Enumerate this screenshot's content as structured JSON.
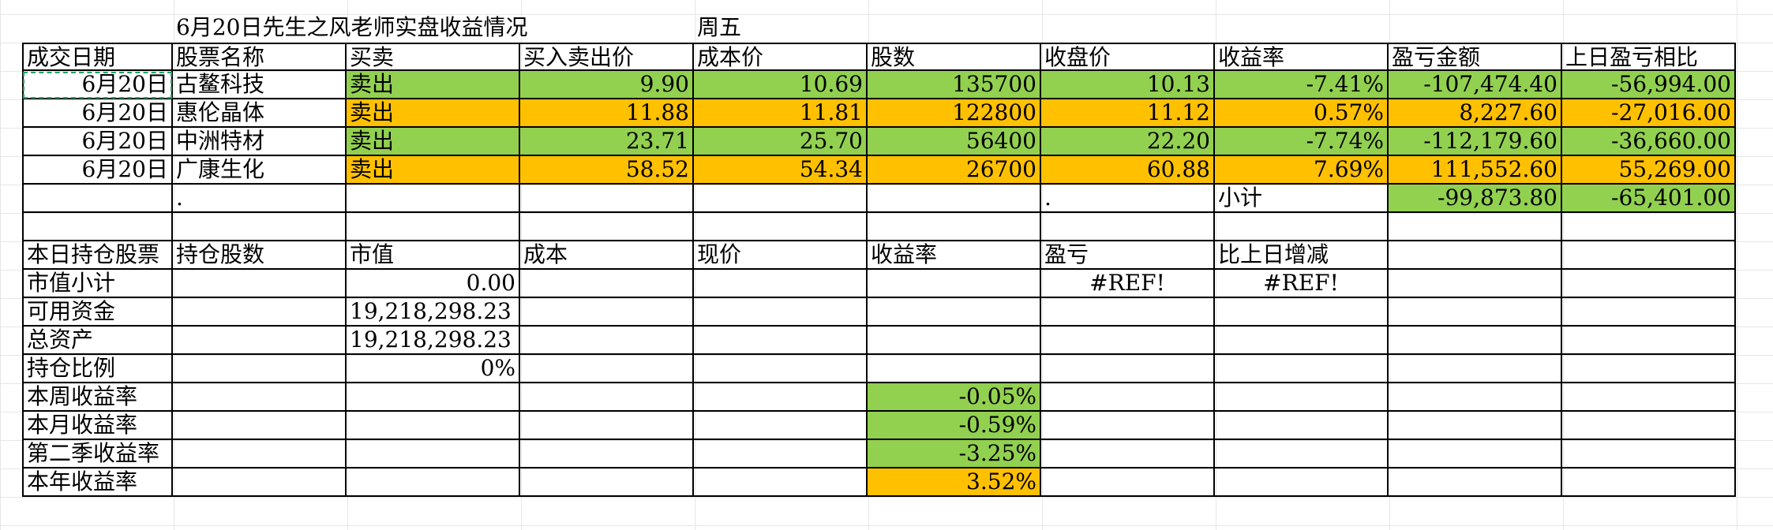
{
  "title": "6月20日先生之风老师实盘收益情况",
  "weekday": "周五",
  "headers": [
    "成交日期",
    "股票名称",
    "买卖",
    "买入卖出价",
    "成本价",
    "股数",
    "收盘价",
    "收益率",
    "盈亏金额",
    "上日盈亏相比"
  ],
  "trades": [
    {
      "date": "6月20日",
      "name": "古鳌科技",
      "action": "卖出",
      "price": "9.90",
      "cost": "10.69",
      "shares": "135700",
      "close": "10.13",
      "rate": "-7.41%",
      "pnl": "-107,474.40",
      "diff": "-56,994.00"
    },
    {
      "date": "6月20日",
      "name": "惠伦晶体",
      "action": "卖出",
      "price": "11.88",
      "cost": "11.81",
      "shares": "122800",
      "close": "11.12",
      "rate": "0.57%",
      "pnl": "8,227.60",
      "diff": "-27,016.00"
    },
    {
      "date": "6月20日",
      "name": "中洲特材",
      "action": "卖出",
      "price": "23.71",
      "cost": "25.70",
      "shares": "56400",
      "close": "22.20",
      "rate": "-7.74%",
      "pnl": "-112,179.60",
      "diff": "-36,660.00"
    },
    {
      "date": "6月20日",
      "name": "广康生化",
      "action": "卖出",
      "price": "58.52",
      "cost": "54.34",
      "shares": "26700",
      "close": "60.88",
      "rate": "7.69%",
      "pnl": "111,552.60",
      "diff": "55,269.00"
    }
  ],
  "subtotal": {
    "dot1": ".",
    "dot2": ".",
    "label": "小计",
    "pnl": "-99,873.80",
    "diff": "-65,401.00"
  },
  "holding_headers": [
    "本日持仓股票",
    "持仓股数",
    "市值",
    "成本",
    "现价",
    "收益率",
    "盈亏",
    "比上日增减"
  ],
  "summary": {
    "mv_label": "市值小计",
    "mv_value": "0.00",
    "mv_pnl": "#REF!",
    "mv_diff": "#REF!",
    "cash_label": "可用资金",
    "cash_value": "19,218,298.23",
    "total_label": "总资产",
    "total_value": "19,218,298.23",
    "ratio_label": "持仓比例",
    "ratio_value": "0%",
    "week_label": "本周收益率",
    "week_value": "-0.05%",
    "month_label": "本月收益率",
    "month_value": "-0.59%",
    "q2_label": "第二季收益率",
    "q2_value": "-3.25%",
    "year_label": "本年收益率",
    "year_value": "3.52%"
  },
  "colors": {
    "green": "#92d050",
    "orange": "#ffc000"
  }
}
